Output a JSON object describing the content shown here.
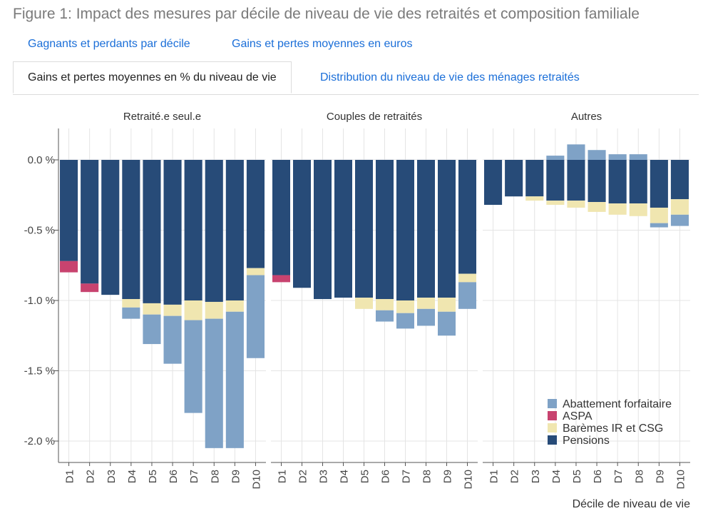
{
  "figure_title": "Figure 1: Impact des mesures par décile de niveau de vie des retraités et composition familiale",
  "tabs": [
    {
      "label": "Gagnants et perdants par décile",
      "active": false
    },
    {
      "label": "Gains et pertes moyennes en euros",
      "active": false
    },
    {
      "label": "Gains et pertes moyennes en % du niveau de vie",
      "active": true
    },
    {
      "label": "Distribution du niveau de vie des ménages retraités",
      "active": false
    }
  ],
  "colors": {
    "Pensions": "#274b78",
    "Barèmes IR et CSG": "#f0e6b0",
    "ASPA": "#c8436f",
    "Abattement forfaitaire": "#7fa2c6",
    "grid": "#e4e4e4",
    "axis": "#555555"
  },
  "chart_data": {
    "type": "bar",
    "stacked": true,
    "ylim": [
      -2.15,
      0.22
    ],
    "yticks": [
      0.0,
      -0.5,
      -1.0,
      -1.5,
      -2.0
    ],
    "ytick_labels": [
      "0.0 %",
      "-0.5 %",
      "-1.0 %",
      "-1.5 %",
      "-2.0 %"
    ],
    "xlabel": "Décile de niveau de vie",
    "categories": [
      "D1",
      "D2",
      "D3",
      "D4",
      "D5",
      "D6",
      "D7",
      "D8",
      "D9",
      "D10"
    ],
    "legend": [
      "Abattement forfaitaire",
      "ASPA",
      "Barèmes IR et CSG",
      "Pensions"
    ],
    "legend_position": "bottom-right",
    "panels": [
      {
        "title": "Retraité.e seul.e",
        "series": [
          {
            "name": "Pensions",
            "values": [
              -0.72,
              -0.88,
              -0.96,
              -0.99,
              -1.02,
              -1.03,
              -1.0,
              -1.01,
              -1.0,
              -0.77
            ]
          },
          {
            "name": "Barèmes IR et CSG",
            "values": [
              0,
              0,
              0,
              -0.06,
              -0.08,
              -0.08,
              -0.14,
              -0.12,
              -0.08,
              -0.05
            ]
          },
          {
            "name": "ASPA",
            "values": [
              -0.08,
              -0.06,
              0,
              0,
              0,
              0,
              0,
              0,
              0,
              0
            ]
          },
          {
            "name": "Abattement forfaitaire",
            "values": [
              0,
              0,
              0,
              -0.08,
              -0.21,
              -0.34,
              -0.66,
              -0.92,
              -0.97,
              -0.59
            ]
          }
        ]
      },
      {
        "title": "Couples de retraités",
        "series": [
          {
            "name": "Pensions",
            "values": [
              -0.82,
              -0.91,
              -0.99,
              -0.98,
              -0.98,
              -0.99,
              -1.0,
              -0.98,
              -0.98,
              -0.81
            ]
          },
          {
            "name": "Barèmes IR et CSG",
            "values": [
              0,
              0,
              0,
              0,
              -0.08,
              -0.08,
              -0.09,
              -0.08,
              -0.1,
              -0.06
            ]
          },
          {
            "name": "ASPA",
            "values": [
              -0.05,
              0,
              0,
              0,
              0,
              0,
              0,
              0,
              0,
              0
            ]
          },
          {
            "name": "Abattement forfaitaire",
            "values": [
              0,
              0,
              0,
              0,
              0,
              -0.08,
              -0.11,
              -0.12,
              -0.17,
              -0.19
            ]
          }
        ]
      },
      {
        "title": "Autres",
        "series": [
          {
            "name": "Pensions",
            "values": [
              -0.32,
              -0.26,
              -0.26,
              -0.29,
              -0.29,
              -0.3,
              -0.31,
              -0.31,
              -0.34,
              -0.28
            ]
          },
          {
            "name": "Barèmes IR et CSG",
            "values": [
              0,
              0,
              -0.03,
              -0.03,
              -0.05,
              -0.07,
              -0.08,
              -0.09,
              -0.11,
              -0.11
            ]
          },
          {
            "name": "ASPA",
            "values": [
              0,
              0,
              0,
              0,
              0,
              0,
              0,
              0,
              0,
              0
            ]
          },
          {
            "name": "Abattement forfaitaire",
            "values": [
              0,
              0,
              0,
              0.03,
              0.11,
              0.07,
              0.04,
              0.04,
              -0.03,
              -0.08
            ]
          }
        ]
      }
    ]
  }
}
